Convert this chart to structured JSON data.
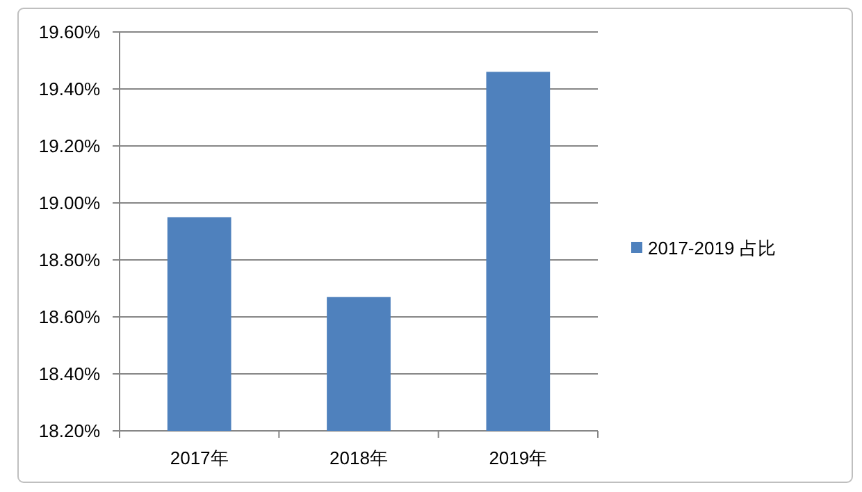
{
  "chart_data": {
    "type": "bar",
    "categories": [
      "2017年",
      "2018年",
      "2019年"
    ],
    "series": [
      {
        "name": "2017-2019 占比",
        "color": "#4f81bd",
        "values": [
          18.95,
          18.67,
          19.46
        ]
      }
    ],
    "ylim": [
      18.2,
      19.6
    ],
    "yticks": [
      {
        "value": 18.2,
        "label": "18.20%"
      },
      {
        "value": 18.4,
        "label": "18.40%"
      },
      {
        "value": 18.6,
        "label": "18.60%"
      },
      {
        "value": 18.8,
        "label": "18.80%"
      },
      {
        "value": 19.0,
        "label": "19.00%"
      },
      {
        "value": 19.2,
        "label": "19.20%"
      },
      {
        "value": 19.4,
        "label": "19.40%"
      },
      {
        "value": 19.6,
        "label": "19.60%"
      }
    ],
    "grid": "y",
    "legend": "right"
  }
}
